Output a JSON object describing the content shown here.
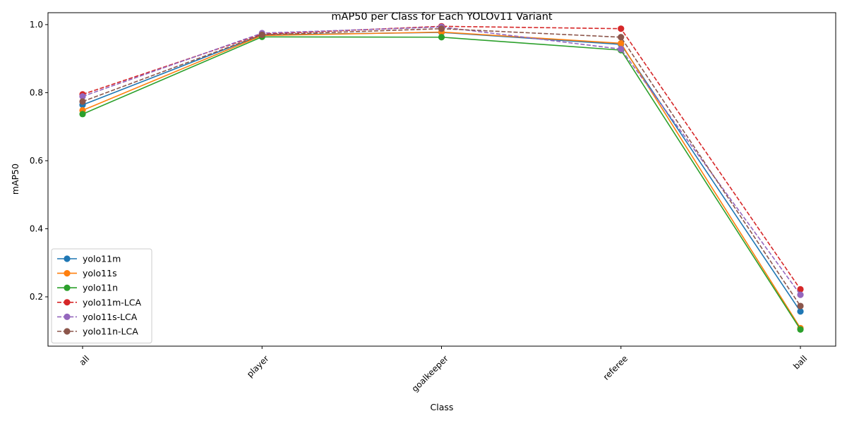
{
  "chart_data": {
    "type": "line",
    "title": "mAP50 per Class for Each YOLOv11 Variant",
    "xlabel": "Class",
    "ylabel": "mAP50",
    "categories": [
      "all",
      "player",
      "goalkeeper",
      "referee",
      "ball"
    ],
    "ylim": [
      0.055,
      1.035
    ],
    "yticks": [
      0.2,
      0.4,
      0.6,
      0.8,
      1.0
    ],
    "ytick_labels": [
      "0.2",
      "0.4",
      "0.6",
      "0.8",
      "1.0"
    ],
    "grid": false,
    "legend_position": "lower-left",
    "series": [
      {
        "name": "yolo11m",
        "color": "#1f77b4",
        "dashed": false,
        "values": [
          0.764,
          0.97,
          0.977,
          0.942,
          0.157
        ]
      },
      {
        "name": "yolo11s",
        "color": "#ff7f0e",
        "dashed": false,
        "values": [
          0.748,
          0.968,
          0.978,
          0.945,
          0.108
        ]
      },
      {
        "name": "yolo11n",
        "color": "#2ca02c",
        "dashed": false,
        "values": [
          0.737,
          0.964,
          0.963,
          0.925,
          0.104
        ]
      },
      {
        "name": "yolo11m-LCA",
        "color": "#d62728",
        "dashed": true,
        "values": [
          0.795,
          0.972,
          0.995,
          0.988,
          0.222
        ]
      },
      {
        "name": "yolo11s-LCA",
        "color": "#9467bd",
        "dashed": true,
        "values": [
          0.789,
          0.975,
          0.993,
          0.928,
          0.206
        ]
      },
      {
        "name": "yolo11n-LCA",
        "color": "#8c564b",
        "dashed": true,
        "values": [
          0.774,
          0.97,
          0.988,
          0.963,
          0.173
        ]
      }
    ]
  }
}
